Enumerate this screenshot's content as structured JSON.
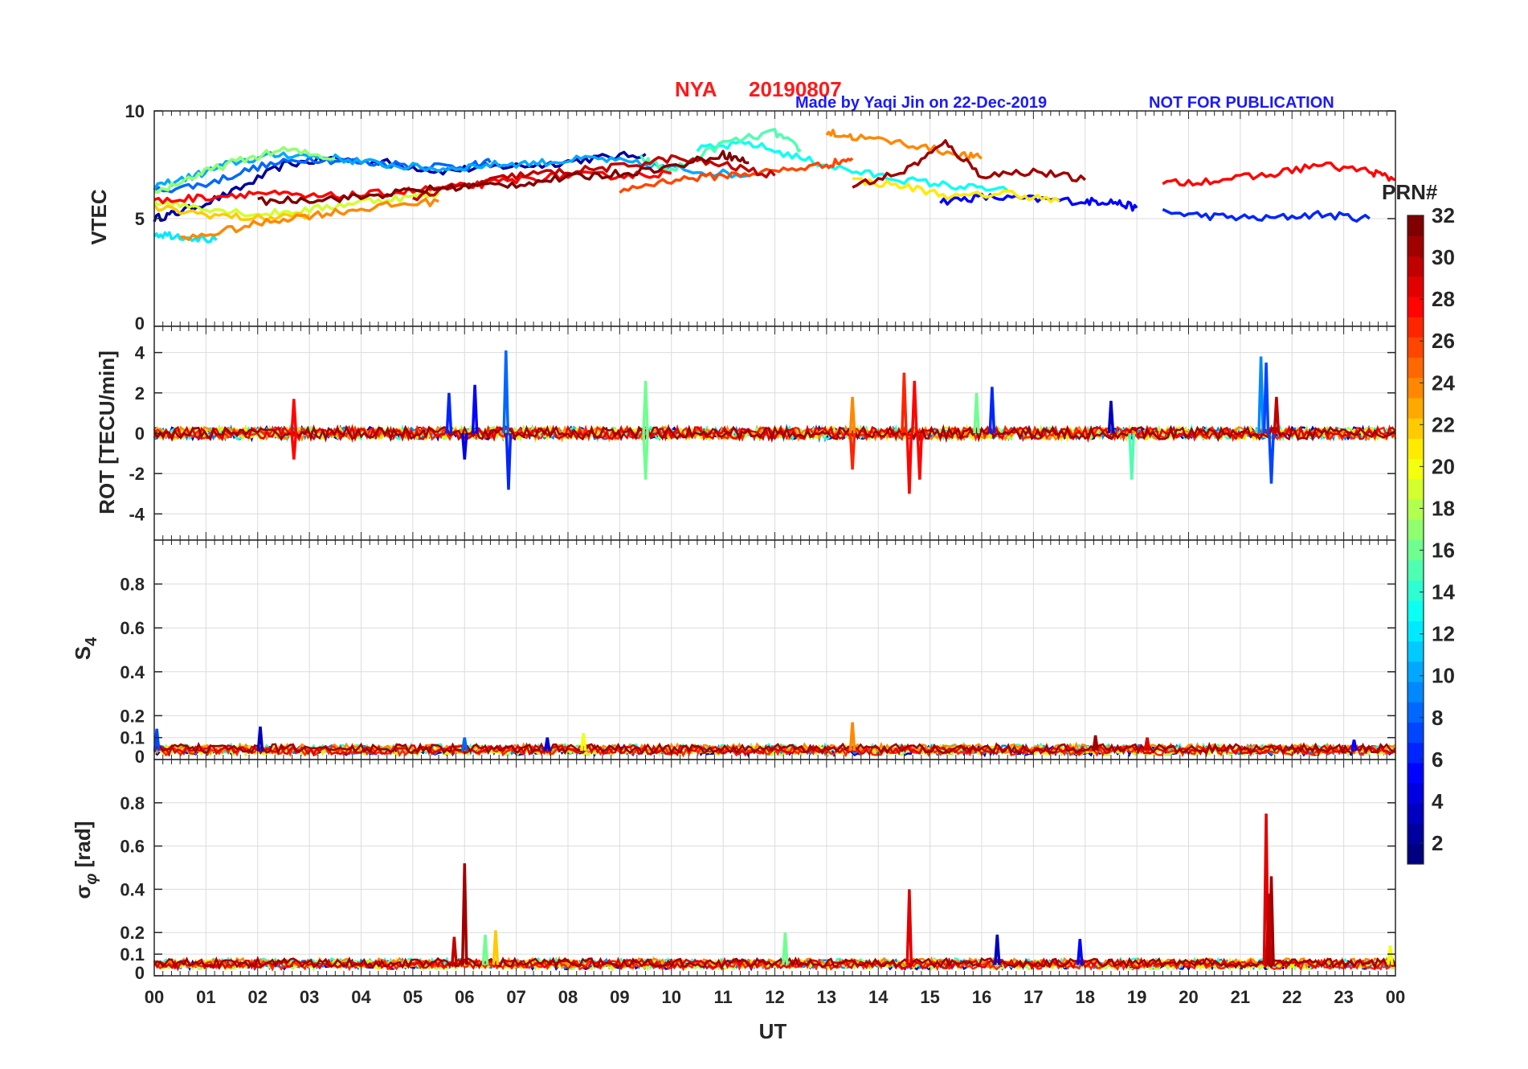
{
  "header": {
    "station": "NYA",
    "date": "20190807",
    "credit": "Made by Yaqi Jin on 22-Dec-2019",
    "notice": "NOT FOR PUBLICATION"
  },
  "colors": {
    "title_red": "#ff1a1a",
    "credit_blue": "#1a1aff",
    "grid": "#dcdcdc",
    "axis": "#262626"
  },
  "chart_data": {
    "type": "line",
    "title": "NYA   20190807",
    "xlabel": "UT",
    "xlim": [
      0,
      24
    ],
    "x_tick_labels": [
      "00",
      "01",
      "02",
      "03",
      "04",
      "05",
      "06",
      "07",
      "08",
      "09",
      "10",
      "11",
      "12",
      "13",
      "14",
      "15",
      "16",
      "17",
      "18",
      "19",
      "20",
      "21",
      "22",
      "23",
      "00"
    ],
    "colorbar": {
      "label": "PRN#",
      "range": [
        1,
        32
      ],
      "colormap": "jet",
      "tick_labels": [
        "2",
        "4",
        "6",
        "8",
        "10",
        "12",
        "14",
        "16",
        "18",
        "20",
        "22",
        "24",
        "26",
        "28",
        "30",
        "32"
      ]
    },
    "panels": [
      {
        "id": "vtec",
        "ylabel": "VTEC",
        "ylim": [
          0,
          10
        ],
        "y_ticks": [
          0,
          5,
          10
        ],
        "y_tick_labels": [
          "0",
          "5",
          "10"
        ],
        "series": [
          {
            "prn": 2,
            "x": [
              0,
              0.5,
              1.5,
              2.5,
              3.5,
              4.5,
              5.5,
              6.5,
              7.5,
              8.5,
              9.5
            ],
            "y": [
              5.0,
              5.3,
              6.2,
              7.5,
              7.8,
              7.6,
              7.2,
              7.4,
              7.5,
              7.8,
              8.0
            ]
          },
          {
            "prn": 5,
            "x": [
              15.2,
              16,
              17,
              18,
              18.5,
              19
            ],
            "y": [
              5.8,
              6.0,
              5.9,
              5.8,
              5.8,
              5.5
            ]
          },
          {
            "prn": 6,
            "x": [
              19.5,
              20.5,
              21.5,
              22.5,
              23.5
            ],
            "y": [
              5.3,
              5.1,
              5.0,
              5.2,
              5.0
            ]
          },
          {
            "prn": 8,
            "x": [
              0,
              1,
              2,
              3,
              4,
              5,
              6,
              6.5
            ],
            "y": [
              6.3,
              6.6,
              7.4,
              7.8,
              7.6,
              7.5,
              7.4,
              7.6
            ]
          },
          {
            "prn": 10,
            "x": [
              0,
              0.8,
              1.5,
              2.5,
              3.5,
              4.5,
              5.5,
              6.5,
              7.5,
              8.5,
              9.5,
              10.5,
              11.5
            ],
            "y": [
              6.5,
              7.0,
              7.6,
              8.0,
              7.8,
              7.5,
              7.3,
              7.5,
              7.6,
              7.8,
              7.5,
              7.2,
              7.0
            ]
          },
          {
            "prn": 12,
            "x": [
              0,
              0.5,
              1.2
            ],
            "y": [
              4.3,
              4.2,
              4.0
            ]
          },
          {
            "prn": 13,
            "x": [
              10.5,
              11.5,
              12.5,
              13.5,
              14.5,
              15.5,
              16.5
            ],
            "y": [
              8.2,
              8.5,
              7.8,
              7.2,
              6.8,
              6.5,
              6.3
            ]
          },
          {
            "prn": 15,
            "x": [
              9.4,
              10,
              11,
              12,
              12.5
            ],
            "y": [
              7.8,
              7.2,
              8.5,
              9.0,
              8.2
            ]
          },
          {
            "prn": 17,
            "x": [
              0,
              0.8,
              1.5,
              2.5,
              3.5
            ],
            "y": [
              6.2,
              7.0,
              7.6,
              8.2,
              7.8
            ]
          },
          {
            "prn": 19,
            "x": [
              0,
              1,
              2,
              3,
              4,
              5,
              5.5
            ],
            "y": [
              5.8,
              5.5,
              5.2,
              5.4,
              5.8,
              6.0,
              6.2
            ]
          },
          {
            "prn": 21,
            "x": [
              13.5,
              14.5,
              15.5,
              16.5,
              17.5
            ],
            "y": [
              6.8,
              6.5,
              6.0,
              6.2,
              5.8
            ]
          },
          {
            "prn": 22,
            "x": [
              0,
              1,
              2,
              3
            ],
            "y": [
              5.5,
              5.2,
              5.0,
              5.2
            ]
          },
          {
            "prn": 24,
            "x": [
              0.5,
              1.5,
              2.5,
              3.5,
              4.5,
              5.5
            ],
            "y": [
              4.0,
              4.5,
              5.0,
              5.3,
              5.6,
              5.8
            ]
          },
          {
            "prn": 24,
            "x": [
              13,
              13.5,
              14.5,
              15.5,
              16
            ],
            "y": [
              9.0,
              8.8,
              8.5,
              8.0,
              7.8
            ]
          },
          {
            "prn": 26,
            "x": [
              9,
              10,
              11,
              12,
              13,
              13.5
            ],
            "y": [
              6.3,
              6.8,
              7.0,
              7.2,
              7.5,
              7.8
            ]
          },
          {
            "prn": 28,
            "x": [
              0,
              1,
              2,
              3,
              4,
              5,
              6,
              7,
              8,
              9,
              10
            ],
            "y": [
              5.8,
              6.0,
              6.2,
              6.0,
              6.1,
              6.3,
              6.5,
              6.8,
              7.0,
              7.0,
              7.1
            ]
          },
          {
            "prn": 28,
            "x": [
              19.5,
              20.5,
              21.5,
              22.5,
              23.5,
              24
            ],
            "y": [
              6.6,
              6.8,
              7.0,
              7.5,
              7.2,
              6.8
            ]
          },
          {
            "prn": 30,
            "x": [
              5,
              6,
              7,
              8,
              9,
              10,
              11,
              12
            ],
            "y": [
              6.0,
              6.5,
              7.0,
              7.2,
              7.4,
              7.8,
              7.5,
              7.0
            ]
          },
          {
            "prn": 32,
            "x": [
              2,
              3,
              4,
              5,
              6,
              7,
              8,
              9,
              10,
              11,
              11.5
            ],
            "y": [
              5.8,
              5.9,
              6.0,
              6.3,
              6.5,
              6.6,
              6.9,
              7.1,
              7.4,
              8.0,
              7.6
            ]
          },
          {
            "prn": 31,
            "x": [
              13.5,
              14.5,
              15.3,
              16,
              17,
              18
            ],
            "y": [
              6.5,
              7.2,
              8.5,
              7.0,
              7.2,
              6.8
            ]
          }
        ]
      },
      {
        "id": "rot",
        "ylabel": "ROT [TECU/min]",
        "ylim": [
          -5.3,
          5.3
        ],
        "y_ticks": [
          -4,
          -2,
          0,
          2,
          4
        ],
        "y_tick_labels": [
          "-4",
          "-2",
          "0",
          "2",
          "4"
        ],
        "baseline_band": 0.3,
        "spikes": [
          {
            "x": 2.7,
            "y": 1.7,
            "prn": 28
          },
          {
            "x": 2.7,
            "y": -1.3,
            "prn": 28
          },
          {
            "x": 5.7,
            "y": 2.0,
            "prn": 6
          },
          {
            "x": 6.2,
            "y": 2.4,
            "prn": 5
          },
          {
            "x": 6.8,
            "y": 4.1,
            "prn": 8
          },
          {
            "x": 6.85,
            "y": -2.8,
            "prn": 6
          },
          {
            "x": 6.0,
            "y": -1.3,
            "prn": 4
          },
          {
            "x": 9.5,
            "y": 2.6,
            "prn": 16
          },
          {
            "x": 9.5,
            "y": -2.3,
            "prn": 16
          },
          {
            "x": 13.5,
            "y": 1.8,
            "prn": 24
          },
          {
            "x": 13.5,
            "y": -1.8,
            "prn": 27
          },
          {
            "x": 14.5,
            "y": 3.0,
            "prn": 27
          },
          {
            "x": 14.6,
            "y": -3.0,
            "prn": 28
          },
          {
            "x": 14.7,
            "y": 2.6,
            "prn": 28
          },
          {
            "x": 14.8,
            "y": -2.3,
            "prn": 28
          },
          {
            "x": 16.2,
            "y": 2.3,
            "prn": 6
          },
          {
            "x": 15.9,
            "y": 2.0,
            "prn": 16
          },
          {
            "x": 18.9,
            "y": -2.3,
            "prn": 15
          },
          {
            "x": 18.5,
            "y": 1.6,
            "prn": 3
          },
          {
            "x": 21.4,
            "y": 3.8,
            "prn": 9
          },
          {
            "x": 21.5,
            "y": 3.5,
            "prn": 7
          },
          {
            "x": 21.6,
            "y": -2.5,
            "prn": 7
          },
          {
            "x": 21.7,
            "y": 1.8,
            "prn": 30
          }
        ]
      },
      {
        "id": "s4",
        "ylabel": "S4",
        "ylim": [
          0,
          1
        ],
        "y_ticks": [
          0,
          0.1,
          0.2,
          0.4,
          0.6,
          0.8
        ],
        "y_tick_labels": [
          "0",
          "0.1",
          "0.2",
          "0.4",
          "0.6",
          "0.8"
        ],
        "baseline_level": 0.04,
        "spikes": [
          {
            "x": 0.05,
            "y": 0.14,
            "prn": 7
          },
          {
            "x": 2.05,
            "y": 0.15,
            "prn": 3
          },
          {
            "x": 6.0,
            "y": 0.1,
            "prn": 8
          },
          {
            "x": 7.6,
            "y": 0.1,
            "prn": 4
          },
          {
            "x": 8.3,
            "y": 0.12,
            "prn": 20
          },
          {
            "x": 13.5,
            "y": 0.17,
            "prn": 24
          },
          {
            "x": 18.2,
            "y": 0.11,
            "prn": 31
          },
          {
            "x": 19.2,
            "y": 0.1,
            "prn": 29
          },
          {
            "x": 23.2,
            "y": 0.09,
            "prn": 5
          }
        ]
      },
      {
        "id": "sigma_phi",
        "ylabel": "σφ [rad]",
        "ylim": [
          0,
          1
        ],
        "y_ticks": [
          0,
          0.1,
          0.2,
          0.4,
          0.6,
          0.8
        ],
        "y_tick_labels": [
          "0",
          "0.1",
          "0.2",
          "0.4",
          "0.6",
          "0.8"
        ],
        "baseline_level": 0.05,
        "spikes": [
          {
            "x": 6.0,
            "y": 0.52,
            "prn": 31
          },
          {
            "x": 5.8,
            "y": 0.18,
            "prn": 30
          },
          {
            "x": 6.6,
            "y": 0.21,
            "prn": 22
          },
          {
            "x": 6.4,
            "y": 0.19,
            "prn": 16
          },
          {
            "x": 12.2,
            "y": 0.2,
            "prn": 16
          },
          {
            "x": 14.6,
            "y": 0.4,
            "prn": 29
          },
          {
            "x": 16.3,
            "y": 0.19,
            "prn": 3
          },
          {
            "x": 17.9,
            "y": 0.17,
            "prn": 5
          },
          {
            "x": 21.5,
            "y": 0.75,
            "prn": 29
          },
          {
            "x": 21.6,
            "y": 0.46,
            "prn": 31
          },
          {
            "x": 21.55,
            "y": 0.38,
            "prn": 30
          },
          {
            "x": 23.9,
            "y": 0.14,
            "prn": 20
          }
        ]
      }
    ]
  }
}
